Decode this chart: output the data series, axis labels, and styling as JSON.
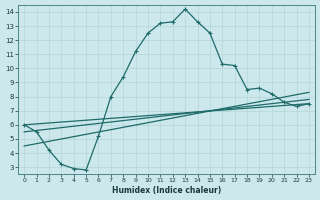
{
  "xlabel": "Humidex (Indice chaleur)",
  "xlim": [
    -0.5,
    23.5
  ],
  "ylim": [
    2.5,
    14.5
  ],
  "xticks": [
    0,
    1,
    2,
    3,
    4,
    5,
    6,
    7,
    8,
    9,
    10,
    11,
    12,
    13,
    14,
    15,
    16,
    17,
    18,
    19,
    20,
    21,
    22,
    23
  ],
  "yticks": [
    3,
    4,
    5,
    6,
    7,
    8,
    9,
    10,
    11,
    12,
    13,
    14
  ],
  "bg_color": "#cce8ec",
  "line_color": "#1e6b6a",
  "grid_color": "#b5d5d8",
  "main_x": [
    0,
    1,
    2,
    3,
    4,
    5,
    6,
    7,
    8,
    9,
    10,
    11,
    12,
    13,
    14,
    15,
    16,
    17,
    18,
    19,
    20,
    21,
    22,
    23
  ],
  "main_y": [
    6.0,
    5.5,
    4.2,
    3.2,
    2.9,
    2.8,
    5.2,
    8.0,
    9.4,
    11.2,
    12.5,
    13.2,
    13.3,
    14.2,
    13.3,
    12.5,
    10.3,
    10.2,
    8.5,
    8.6,
    8.2,
    7.6,
    7.3,
    7.5
  ],
  "trend_lines": [
    {
      "x": [
        0,
        23
      ],
      "y": [
        6.0,
        7.5
      ]
    },
    {
      "x": [
        0,
        23
      ],
      "y": [
        5.5,
        7.8
      ]
    },
    {
      "x": [
        0,
        23
      ],
      "y": [
        4.5,
        8.3
      ]
    }
  ]
}
